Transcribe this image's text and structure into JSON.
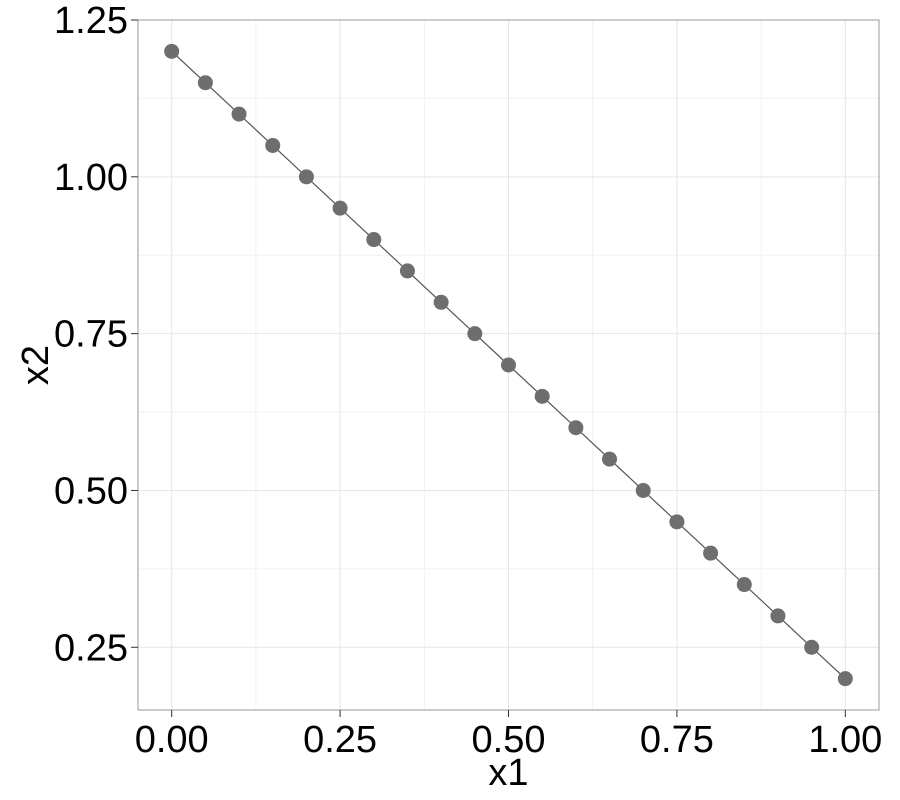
{
  "chart_data": {
    "type": "scatter",
    "xlabel": "x1",
    "ylabel": "x2",
    "xlim": [
      -0.05,
      1.05
    ],
    "ylim": [
      0.15,
      1.25
    ],
    "x_ticks": [
      {
        "value": 0.0,
        "label": "0.00"
      },
      {
        "value": 0.25,
        "label": "0.25"
      },
      {
        "value": 0.5,
        "label": "0.50"
      },
      {
        "value": 0.75,
        "label": "0.75"
      },
      {
        "value": 1.0,
        "label": "1.00"
      }
    ],
    "y_ticks": [
      {
        "value": 0.25,
        "label": "0.25"
      },
      {
        "value": 0.5,
        "label": "0.50"
      },
      {
        "value": 0.75,
        "label": "0.75"
      },
      {
        "value": 1.0,
        "label": "1.00"
      },
      {
        "value": 1.25,
        "label": "1.25"
      }
    ],
    "x_minor_grid": [
      0.125,
      0.375,
      0.625,
      0.875
    ],
    "y_minor_grid": [
      0.375,
      0.625,
      0.875,
      1.125
    ],
    "grid": true,
    "line": true,
    "point_color": "#6e6e6e",
    "line_color": "#555555",
    "grid_color": "#e6e6e6",
    "series": [
      {
        "x": [
          0.0,
          0.05,
          0.1,
          0.15,
          0.2,
          0.25,
          0.3,
          0.35,
          0.4,
          0.45,
          0.5,
          0.55,
          0.6,
          0.65,
          0.7,
          0.75,
          0.8,
          0.85,
          0.9,
          0.95,
          1.0
        ],
        "y": [
          1.2,
          1.15,
          1.1,
          1.05,
          1.0,
          0.95,
          0.9,
          0.85,
          0.8,
          0.75,
          0.7,
          0.65,
          0.6,
          0.55,
          0.5,
          0.45,
          0.4,
          0.35,
          0.3,
          0.25,
          0.2
        ]
      }
    ]
  }
}
